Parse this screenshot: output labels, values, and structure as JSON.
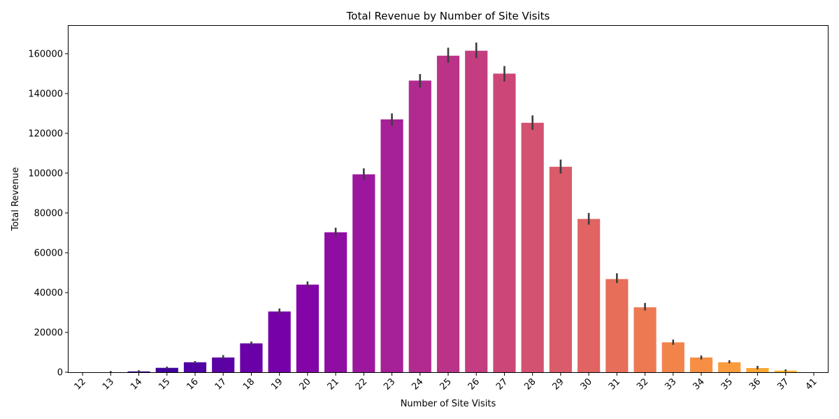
{
  "chart_data": {
    "type": "bar",
    "title": "Total Revenue by Number of Site Visits",
    "xlabel": "Number of Site Visits",
    "ylabel": "Total Revenue",
    "ylim": [
      0,
      174000
    ],
    "yticks": [
      0,
      20000,
      40000,
      60000,
      80000,
      100000,
      120000,
      140000,
      160000
    ],
    "categories": [
      "12",
      "13",
      "14",
      "15",
      "16",
      "17",
      "18",
      "19",
      "20",
      "21",
      "22",
      "23",
      "24",
      "25",
      "26",
      "27",
      "28",
      "29",
      "30",
      "31",
      "32",
      "33",
      "34",
      "35",
      "36",
      "37",
      "41"
    ],
    "values": [
      0,
      0,
      400,
      2200,
      5000,
      7400,
      14500,
      30500,
      44000,
      70300,
      99400,
      127000,
      146500,
      159000,
      161500,
      150000,
      125300,
      103200,
      77000,
      46800,
      32600,
      15000,
      7400,
      5000,
      2100,
      800,
      0
    ],
    "error_low": [
      0,
      0,
      0,
      1600,
      4500,
      6700,
      13500,
      29200,
      42800,
      68200,
      96800,
      123800,
      143000,
      155500,
      157800,
      146000,
      121800,
      99800,
      74100,
      44800,
      31000,
      13800,
      6400,
      4500,
      1500,
      300,
      0
    ],
    "error_high": [
      0,
      600,
      1000,
      2800,
      5600,
      8600,
      15400,
      32000,
      45600,
      72600,
      102400,
      130000,
      149800,
      163000,
      165600,
      153800,
      129000,
      106800,
      80000,
      49700,
      34800,
      16400,
      8400,
      6000,
      3200,
      1400,
      0
    ],
    "colors": [
      "#0d0887",
      "#220690",
      "#330597",
      "#41049d",
      "#5002a2",
      "#5c01a6",
      "#6a00a8",
      "#7701a8",
      "#8405a7",
      "#900da4",
      "#9c179e",
      "#a62098",
      "#b12a90",
      "#ba3388",
      "#c33d80",
      "#cc4778",
      "#d35171",
      "#da5b69",
      "#e16462",
      "#e76f5a",
      "#ed7953",
      "#f2844b",
      "#f68f44",
      "#fa9b3d",
      "#fca636",
      "#fdb32f",
      "#f0f921"
    ],
    "error_color": "#3d3d3d",
    "grid": false,
    "legend": "none"
  }
}
